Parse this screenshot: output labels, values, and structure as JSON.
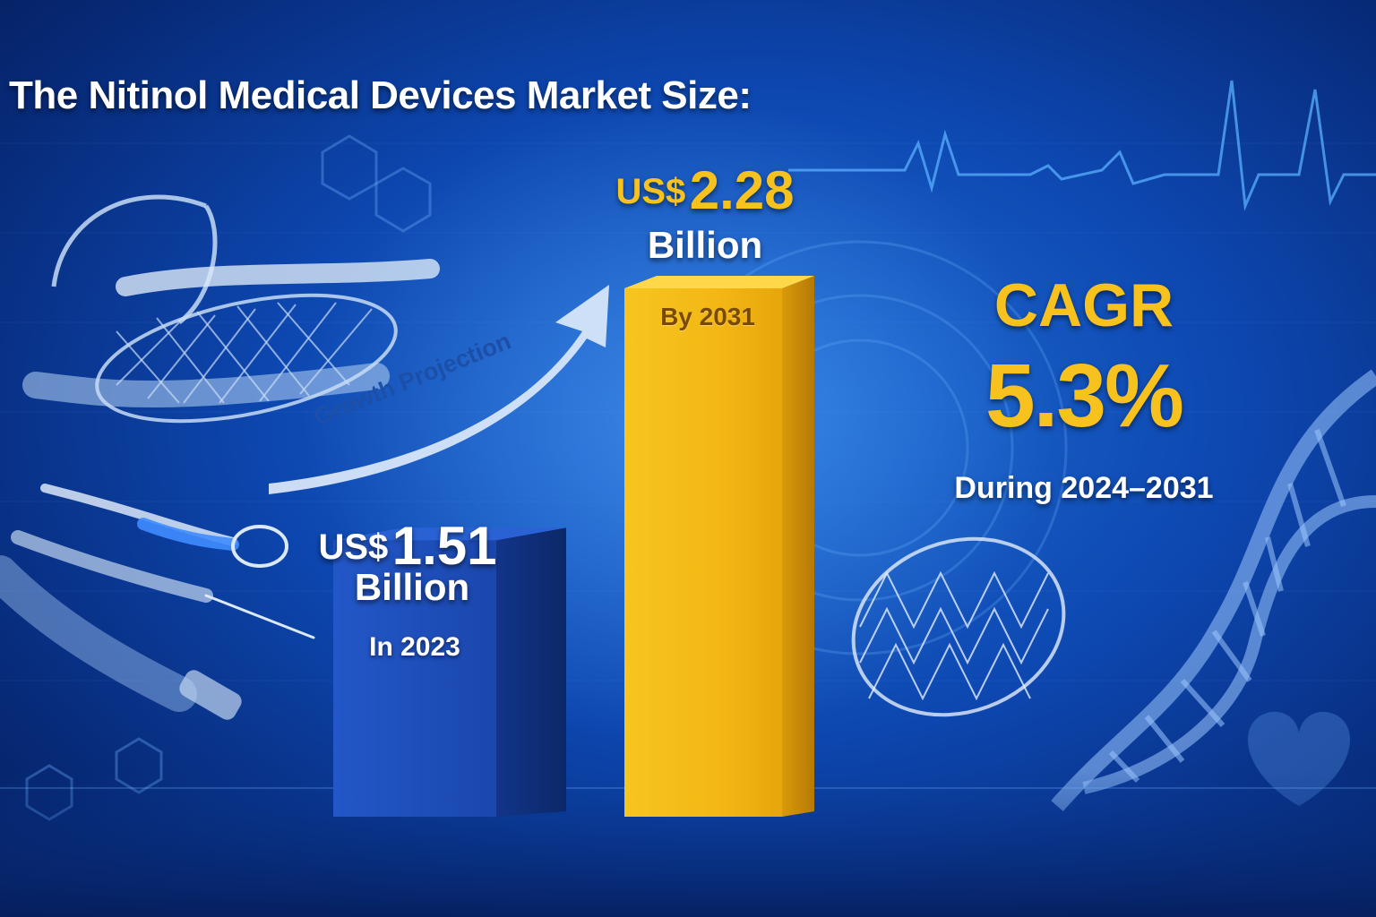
{
  "title": "The Nitinol Medical Devices Market Size:",
  "chart_data": {
    "type": "bar",
    "categories": [
      "In 2023",
      "By 2031"
    ],
    "values": [
      1.51,
      2.28
    ],
    "unit": "Billion",
    "currency": "US$",
    "ylim": [
      0,
      2.5
    ],
    "bar_colors": [
      "#1d4fc0",
      "#f5bf1e"
    ],
    "labels": [
      {
        "currency": "US$",
        "value": "1.51",
        "unit": "Billion",
        "period": "In 2023"
      },
      {
        "currency": "US$",
        "value": "2.28",
        "unit": "Billion",
        "period": "By 2031"
      }
    ]
  },
  "cagr": {
    "label": "CAGR",
    "value": "5.3%",
    "period": "During 2024–2031"
  },
  "arrow_label": "Growth Projection",
  "colors": {
    "background": "#0d47b0",
    "accent_gold": "#f7c21d",
    "text_white": "#ffffff"
  },
  "decorations": [
    "stent-icon",
    "catheter-icon",
    "heartbeat-line-icon",
    "dna-helix-icon",
    "heart-icon",
    "hexagon-pattern-icon"
  ]
}
